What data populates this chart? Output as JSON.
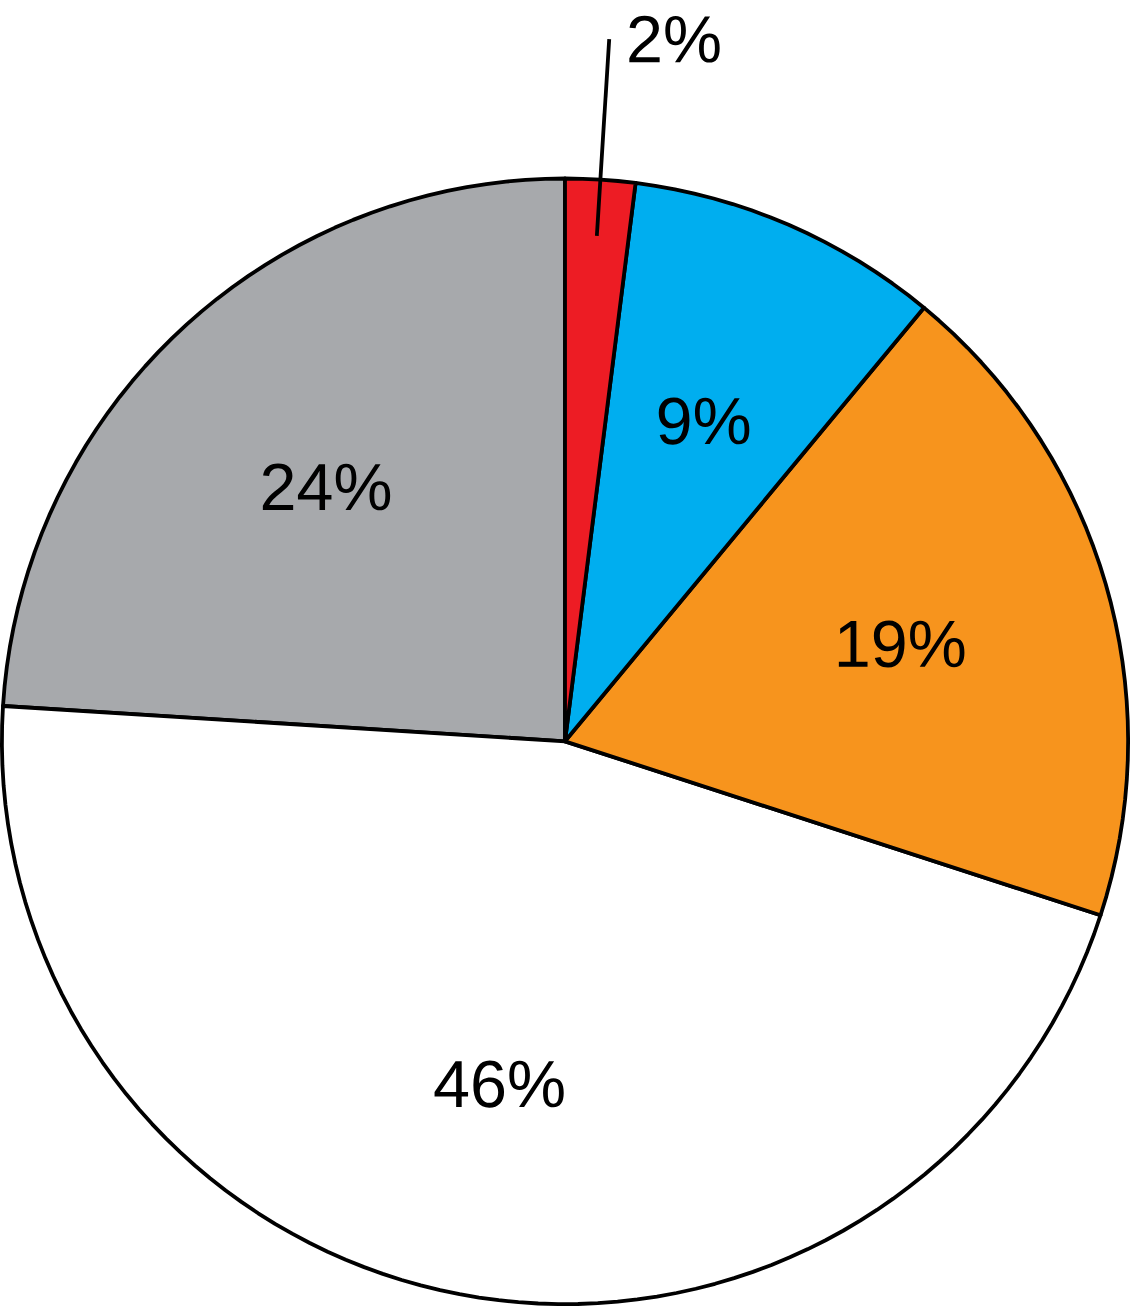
{
  "chart_data": {
    "type": "pie",
    "categories": [
      null,
      null,
      null,
      null,
      null
    ],
    "values": [
      24,
      46,
      19,
      9,
      2
    ],
    "colors": [
      "#a7a9ac",
      "#ffffff",
      "#f7941d",
      "#00aeef",
      "#ed1c24"
    ],
    "value_labels": [
      "24%",
      "46%",
      "19%",
      "9%",
      "2%"
    ]
  }
}
